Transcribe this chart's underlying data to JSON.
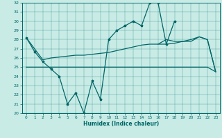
{
  "xlabel": "Humidex (Indice chaleur)",
  "bg_color": "#c8ebe6",
  "line_color": "#006666",
  "ylim": [
    20,
    32
  ],
  "xlim": [
    -0.5,
    23.5
  ],
  "x": [
    0,
    1,
    2,
    3,
    4,
    5,
    6,
    7,
    8,
    9,
    10,
    11,
    12,
    13,
    14,
    15,
    16,
    17,
    18,
    19,
    20,
    21,
    22,
    23
  ],
  "line_main": [
    28.2,
    26.7,
    25.6,
    24.8,
    24.0,
    21.0,
    22.2,
    20.0,
    23.5,
    21.5,
    28.0,
    29.0,
    29.5,
    30.0,
    29.5,
    32.0,
    32.0,
    27.5,
    30.0,
    null,
    null,
    null,
    null,
    null
  ],
  "line_upper": [
    28.2,
    27.0,
    25.8,
    26.0,
    26.1,
    26.2,
    26.3,
    26.3,
    26.4,
    26.5,
    26.6,
    26.8,
    27.0,
    27.2,
    27.4,
    27.5,
    27.5,
    27.5,
    27.6,
    27.8,
    28.0,
    28.3,
    28.0,
    24.5
  ],
  "line_lower": [
    25.0,
    25.0,
    25.0,
    25.0,
    25.0,
    25.0,
    25.0,
    25.0,
    25.0,
    25.0,
    25.0,
    25.0,
    25.0,
    25.0,
    25.0,
    25.0,
    25.0,
    25.0,
    25.0,
    25.0,
    25.0,
    25.0,
    25.0,
    24.5
  ],
  "line_mid": [
    null,
    null,
    null,
    null,
    null,
    null,
    null,
    null,
    null,
    null,
    null,
    null,
    null,
    null,
    null,
    null,
    27.5,
    28.0,
    27.8,
    27.8,
    27.8,
    28.3,
    28.0,
    24.5
  ]
}
